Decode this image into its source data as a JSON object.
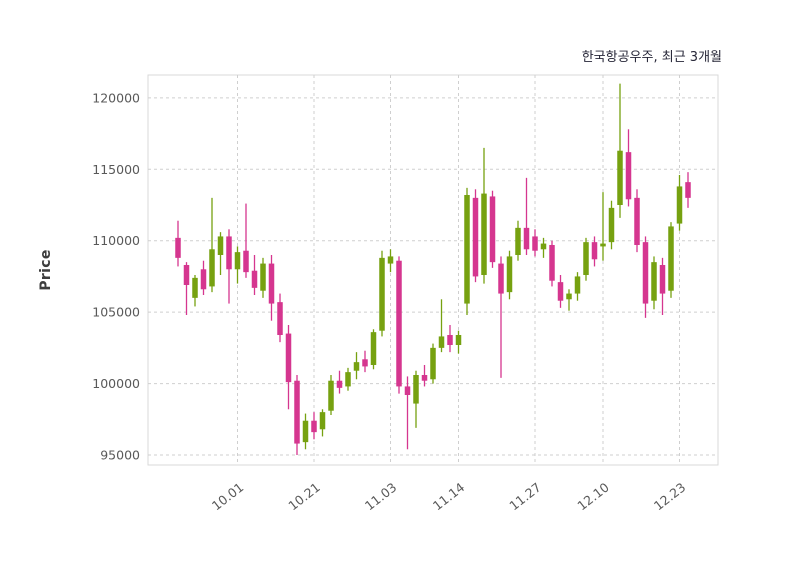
{
  "chart": {
    "title": "한국항공우주, 최근 3개월",
    "ylabel": "Price"
  },
  "chart_data": {
    "type": "candlestick",
    "title": "한국항공우주, 최근 3개월",
    "ylabel": "Price",
    "xlabel": "",
    "grid": "dashed",
    "legend": "none",
    "ylim": [
      94300,
      121600
    ],
    "y_ticks": [
      95000,
      100000,
      105000,
      110000,
      115000,
      120000
    ],
    "x_tick_labels": [
      "10.01",
      "10.21",
      "11.03",
      "11.14",
      "11.27",
      "12.10",
      "12.23"
    ],
    "x_tick_indices": [
      7,
      16,
      25,
      33,
      42,
      50,
      59
    ],
    "colors": {
      "up": "#76a110",
      "down": "#d5368f",
      "grid": "#cfcfcf",
      "tick_text": "#595959",
      "border": "#d9d9d9"
    },
    "candles_format": [
      "open",
      "high",
      "low",
      "close"
    ],
    "candles": [
      [
        110200,
        111400,
        108200,
        108800
      ],
      [
        108300,
        108500,
        104800,
        106900
      ],
      [
        106000,
        107600,
        105400,
        107400
      ],
      [
        108000,
        108600,
        106200,
        106600
      ],
      [
        106800,
        113000,
        106400,
        109400
      ],
      [
        109000,
        110600,
        107600,
        110300
      ],
      [
        110300,
        110800,
        105600,
        108000
      ],
      [
        108000,
        109600,
        107000,
        109200
      ],
      [
        109300,
        112600,
        107400,
        107800
      ],
      [
        107900,
        109000,
        106200,
        106700
      ],
      [
        106500,
        108800,
        106000,
        108400
      ],
      [
        108400,
        109000,
        104400,
        105600
      ],
      [
        105700,
        106300,
        102900,
        103400
      ],
      [
        103500,
        104100,
        98200,
        100100
      ],
      [
        100200,
        100600,
        95000,
        95800
      ],
      [
        95900,
        97900,
        95400,
        97400
      ],
      [
        97400,
        98000,
        96100,
        96600
      ],
      [
        96800,
        98200,
        96300,
        98000
      ],
      [
        98100,
        100600,
        97800,
        100200
      ],
      [
        100200,
        100900,
        99300,
        99700
      ],
      [
        99800,
        101100,
        99500,
        100800
      ],
      [
        100900,
        102200,
        100300,
        101500
      ],
      [
        101700,
        102300,
        100800,
        101200
      ],
      [
        101300,
        103800,
        101000,
        103600
      ],
      [
        103700,
        109300,
        103300,
        108800
      ],
      [
        108400,
        109400,
        107800,
        108900
      ],
      [
        108600,
        108900,
        99300,
        99800
      ],
      [
        99800,
        100500,
        95400,
        99200
      ],
      [
        98600,
        100900,
        96900,
        100600
      ],
      [
        100600,
        101300,
        99800,
        100200
      ],
      [
        100300,
        102800,
        100000,
        102500
      ],
      [
        102500,
        105900,
        102200,
        103300
      ],
      [
        103400,
        104100,
        102200,
        102700
      ],
      [
        102700,
        103700,
        102100,
        103400
      ],
      [
        105600,
        113700,
        104800,
        113200
      ],
      [
        113000,
        113600,
        107100,
        107500
      ],
      [
        107600,
        116500,
        107000,
        113300
      ],
      [
        113100,
        113500,
        108100,
        108500
      ],
      [
        108400,
        108900,
        100400,
        106300
      ],
      [
        106400,
        109300,
        105900,
        108900
      ],
      [
        109000,
        111400,
        108600,
        110900
      ],
      [
        110900,
        114400,
        109000,
        109400
      ],
      [
        110300,
        110800,
        108900,
        109300
      ],
      [
        109400,
        110200,
        108800,
        109800
      ],
      [
        109700,
        110000,
        106800,
        107200
      ],
      [
        107100,
        107600,
        105300,
        105800
      ],
      [
        105900,
        106600,
        105100,
        106300
      ],
      [
        106300,
        107800,
        105800,
        107500
      ],
      [
        107600,
        110200,
        107200,
        109900
      ],
      [
        109900,
        110300,
        108200,
        108700
      ],
      [
        109600,
        113400,
        108600,
        109800
      ],
      [
        109900,
        112800,
        109400,
        112300
      ],
      [
        112500,
        121000,
        111600,
        116300
      ],
      [
        116200,
        117800,
        112400,
        112900
      ],
      [
        113000,
        113600,
        109200,
        109700
      ],
      [
        109900,
        110300,
        104600,
        105600
      ],
      [
        105800,
        108900,
        105200,
        108500
      ],
      [
        108300,
        108800,
        104800,
        106300
      ],
      [
        106500,
        111300,
        106000,
        111000
      ],
      [
        111200,
        114600,
        110700,
        113800
      ],
      [
        114100,
        114800,
        112300,
        113000
      ]
    ]
  }
}
